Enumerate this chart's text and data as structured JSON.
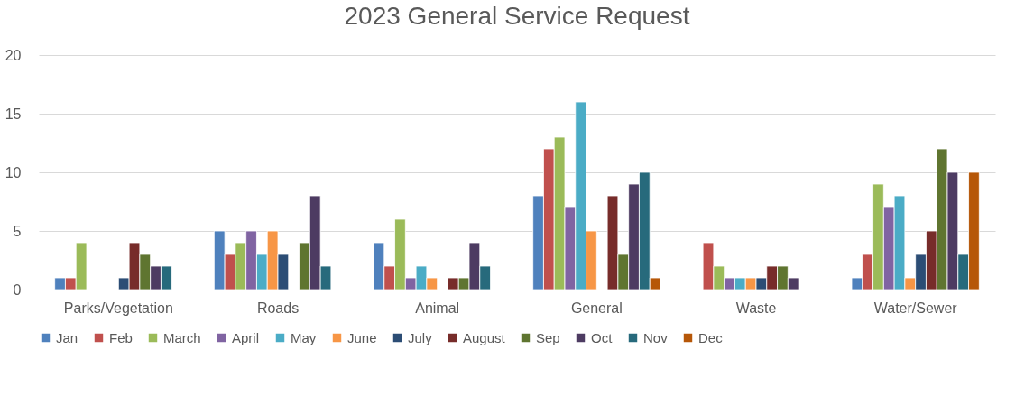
{
  "chart_data": {
    "type": "bar",
    "title": "2023 General Service Request",
    "categories": [
      "Parks/Vegetation",
      "Roads",
      "Animal",
      "General",
      "Waste",
      "Water/Sewer"
    ],
    "series": [
      {
        "name": "Jan",
        "color": "#4f81bd",
        "values": [
          1,
          5,
          4,
          8,
          null,
          1
        ]
      },
      {
        "name": "Feb",
        "color": "#c0504d",
        "values": [
          1,
          3,
          2,
          12,
          4,
          3
        ]
      },
      {
        "name": "March",
        "color": "#9bbb59",
        "values": [
          4,
          4,
          6,
          13,
          2,
          9
        ]
      },
      {
        "name": "April",
        "color": "#8064a2",
        "values": [
          null,
          5,
          1,
          7,
          1,
          7
        ]
      },
      {
        "name": "May",
        "color": "#4bacc6",
        "values": [
          null,
          3,
          2,
          16,
          1,
          8
        ]
      },
      {
        "name": "June",
        "color": "#f79646",
        "values": [
          null,
          5,
          1,
          5,
          1,
          1
        ]
      },
      {
        "name": "July",
        "color": "#2c4d75",
        "values": [
          1,
          3,
          null,
          null,
          1,
          3
        ]
      },
      {
        "name": "August",
        "color": "#772c2a",
        "values": [
          4,
          null,
          1,
          8,
          2,
          5
        ]
      },
      {
        "name": "Sep",
        "color": "#5f7530",
        "values": [
          3,
          4,
          1,
          3,
          2,
          12
        ]
      },
      {
        "name": "Oct",
        "color": "#4d3b62",
        "values": [
          2,
          8,
          4,
          9,
          1,
          10
        ]
      },
      {
        "name": "Nov",
        "color": "#276a7c",
        "values": [
          2,
          2,
          2,
          10,
          null,
          3
        ]
      },
      {
        "name": "Dec",
        "color": "#b65708",
        "values": [
          null,
          null,
          null,
          1,
          null,
          10
        ]
      }
    ],
    "ylim": [
      0,
      20
    ],
    "yticks": [
      0,
      5,
      10,
      15,
      20
    ],
    "grid": "y",
    "legend": "bottom"
  }
}
